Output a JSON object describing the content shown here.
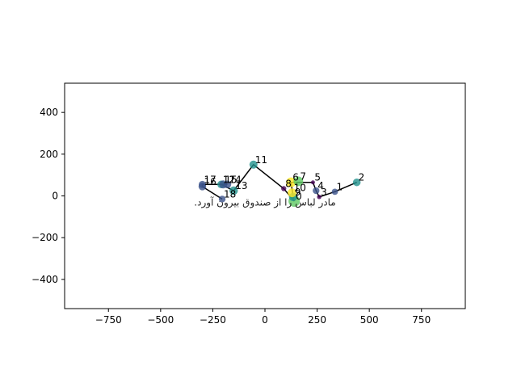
{
  "chart_data": {
    "type": "scatter",
    "title": "",
    "xlabel": "",
    "ylabel": "",
    "xlim": [
      -960,
      960
    ],
    "ylim": [
      -540,
      540
    ],
    "xticks": [
      -750,
      -500,
      -250,
      0,
      250,
      500,
      750
    ],
    "yticks": [
      -400,
      -200,
      0,
      200,
      400
    ],
    "grid": false,
    "caption": "مادر لباس را از صندوق بیرون آورد.",
    "caption_position": [
      0,
      -30
    ],
    "points": [
      {
        "label": "0",
        "x": 140,
        "y": -25,
        "size": 200,
        "color": "#5ec962"
      },
      {
        "label": "1",
        "x": 335,
        "y": 20,
        "size": 60,
        "color": "#3b528b"
      },
      {
        "label": "2",
        "x": 440,
        "y": 65,
        "size": 90,
        "color": "#21918c"
      },
      {
        "label": "3",
        "x": 260,
        "y": -5,
        "size": 30,
        "color": "#440154"
      },
      {
        "label": "4",
        "x": 245,
        "y": 25,
        "size": 70,
        "color": "#3b528b"
      },
      {
        "label": "5",
        "x": 230,
        "y": 65,
        "size": 25,
        "color": "#440154"
      },
      {
        "label": "6",
        "x": 125,
        "y": 65,
        "size": 150,
        "color": "#fde725"
      },
      {
        "label": "7",
        "x": 160,
        "y": 70,
        "size": 140,
        "color": "#5ec962"
      },
      {
        "label": "8",
        "x": 90,
        "y": 35,
        "size": 40,
        "color": "#440154"
      },
      {
        "label": "9",
        "x": 135,
        "y": -5,
        "size": 110,
        "color": "#21918c"
      },
      {
        "label": "10",
        "x": 130,
        "y": 15,
        "size": 120,
        "color": "#fde725"
      },
      {
        "label": "11",
        "x": -55,
        "y": 150,
        "size": 100,
        "color": "#21918c"
      },
      {
        "label": "12",
        "x": -210,
        "y": 55,
        "size": 90,
        "color": "#21918c"
      },
      {
        "label": "13",
        "x": -150,
        "y": 25,
        "size": 110,
        "color": "#21918c"
      },
      {
        "label": "14",
        "x": -180,
        "y": 55,
        "size": 90,
        "color": "#3b528b"
      },
      {
        "label": "15",
        "x": -200,
        "y": 55,
        "size": 100,
        "color": "#3b528b"
      },
      {
        "label": "16",
        "x": -300,
        "y": 45,
        "size": 90,
        "color": "#3b528b"
      },
      {
        "label": "17",
        "x": -300,
        "y": 55,
        "size": 80,
        "color": "#3b528b"
      },
      {
        "label": "18",
        "x": -205,
        "y": -15,
        "size": 70,
        "color": "#3b528b"
      }
    ],
    "path_order": [
      "2",
      "1",
      "3",
      "4",
      "5",
      "6",
      "9",
      "0",
      "8",
      "11",
      "13",
      "12",
      "15",
      "14",
      "17",
      "16",
      "18"
    ],
    "line_color": "#000000",
    "colormap": "viridis"
  }
}
